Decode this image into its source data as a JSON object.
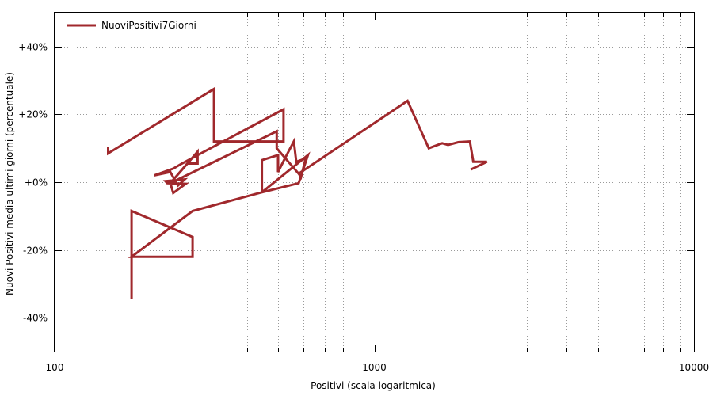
{
  "chart_data": {
    "type": "line",
    "xlabel": "Positivi (scala logaritmica)",
    "ylabel": "Nuovi Positivi media ultimi giorni (percentuale)",
    "x_scale": "log",
    "xlim": [
      100,
      10000
    ],
    "ylim": [
      -50,
      50
    ],
    "grid": true,
    "legend_position": "top-left",
    "x_ticks": [
      {
        "value": 100,
        "label": "100"
      },
      {
        "value": 1000,
        "label": "1000"
      },
      {
        "value": 10000,
        "label": "10000"
      }
    ],
    "y_ticks": [
      {
        "value": 40,
        "label": "+40%"
      },
      {
        "value": 20,
        "label": "+20%"
      },
      {
        "value": 0,
        "label": "+0%"
      },
      {
        "value": -20,
        "label": "-20%"
      },
      {
        "value": -40,
        "label": "-40%"
      }
    ],
    "series": [
      {
        "name": "NuoviPositivi7Giorni",
        "color": "#a0282c",
        "points": [
          [
            174,
            -34.5
          ],
          [
            174,
            -8.5
          ],
          [
            270,
            -16.2
          ],
          [
            270,
            -22
          ],
          [
            174,
            -22
          ],
          [
            270,
            -8.5
          ],
          [
            445,
            -3
          ],
          [
            620,
            8
          ],
          [
            580,
            -0.3
          ],
          [
            445,
            -3
          ],
          [
            445,
            6.5
          ],
          [
            500,
            8
          ],
          [
            500,
            3
          ],
          [
            525,
            7
          ],
          [
            560,
            12
          ],
          [
            570,
            6
          ],
          [
            610,
            7
          ],
          [
            590,
            1.5
          ],
          [
            580,
            2.5
          ],
          [
            1270,
            24
          ],
          [
            1480,
            10
          ],
          [
            1630,
            11.5
          ],
          [
            1700,
            11
          ],
          [
            1830,
            11.8
          ],
          [
            1990,
            12
          ],
          [
            2040,
            6
          ],
          [
            2250,
            6
          ],
          [
            2000,
            3.7
          ],
          [
            2250,
            6
          ],
          [
            2040,
            6
          ],
          [
            1990,
            12
          ],
          [
            1830,
            11.8
          ],
          [
            1700,
            11
          ],
          [
            1630,
            11.5
          ],
          [
            1480,
            10
          ],
          [
            1270,
            24
          ],
          [
            580,
            2.5
          ],
          [
            495,
            10
          ],
          [
            495,
            15
          ],
          [
            230,
            -0.3
          ],
          [
            260,
            5.5
          ],
          [
            280,
            5.5
          ],
          [
            280,
            9
          ],
          [
            255,
            4.5
          ],
          [
            230,
            -0.3
          ],
          [
            235,
            -3.2
          ],
          [
            257,
            -0.5
          ],
          [
            225,
            -0.3
          ],
          [
            222,
            0.3
          ],
          [
            255,
            0.8
          ],
          [
            243,
            -1
          ],
          [
            230,
            3
          ],
          [
            205,
            2
          ],
          [
            235,
            4
          ],
          [
            250,
            5.5
          ],
          [
            520,
            21.5
          ],
          [
            520,
            12
          ],
          [
            315,
            12
          ],
          [
            315,
            27.5
          ],
          [
            147,
            8.5
          ],
          [
            147,
            10.5
          ]
        ]
      }
    ]
  }
}
